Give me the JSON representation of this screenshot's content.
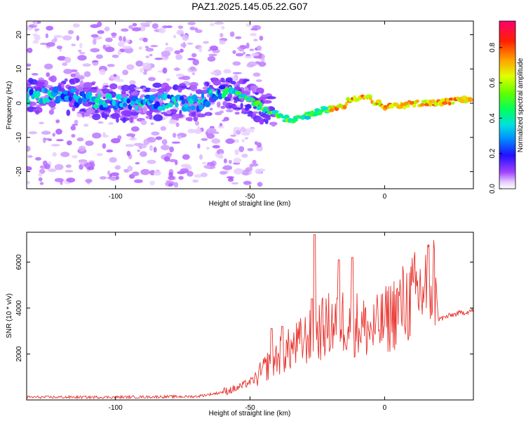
{
  "title": "PAZ1.2025.145.05.22.G07",
  "chart_data": [
    {
      "type": "heatmap",
      "xlabel": "Height of straight line (km)",
      "ylabel": "Frequency (Hz)",
      "xlim": [
        -133,
        33
      ],
      "ylim": [
        -25,
        24
      ],
      "xticks": [
        -100,
        -50,
        0
      ],
      "yticks": [
        -20,
        -10,
        0,
        10,
        20
      ],
      "colorbar": {
        "label": "Normalized spectral amplitude",
        "range": [
          0,
          0.95
        ],
        "ticks": [
          "0.0",
          "0.2",
          "0.4",
          "0.6",
          "0.8"
        ],
        "colormap": [
          "#ffffff",
          "#d9b3ff",
          "#8000ff",
          "#2000ff",
          "#00c0ff",
          "#00ff80",
          "#80ff00",
          "#ffff00",
          "#ff8000",
          "#ff0000",
          "#ff0060"
        ]
      },
      "ridge": [
        {
          "x": -133,
          "f": 2
        },
        {
          "x": -120,
          "f": 2.5
        },
        {
          "x": -110,
          "f": 1
        },
        {
          "x": -100,
          "f": 0
        },
        {
          "x": -90,
          "f": 0
        },
        {
          "x": -80,
          "f": 0.5
        },
        {
          "x": -70,
          "f": 0
        },
        {
          "x": -65,
          "f": 2
        },
        {
          "x": -60,
          "f": 3.5
        },
        {
          "x": -55,
          "f": 3
        },
        {
          "x": -50,
          "f": 1
        },
        {
          "x": -45,
          "f": -1.5
        },
        {
          "x": -40,
          "f": -3.5
        },
        {
          "x": -35,
          "f": -5
        },
        {
          "x": -30,
          "f": -4
        },
        {
          "x": -25,
          "f": -2.5
        },
        {
          "x": -20,
          "f": -1.5
        },
        {
          "x": -15,
          "f": -0.5
        },
        {
          "x": -12,
          "f": 1.5
        },
        {
          "x": -8,
          "f": 2
        },
        {
          "x": -5,
          "f": 1
        },
        {
          "x": 0,
          "f": -1
        },
        {
          "x": 5,
          "f": -1
        },
        {
          "x": 10,
          "f": 0
        },
        {
          "x": 20,
          "f": 0
        },
        {
          "x": 33,
          "f": 1.5
        }
      ]
    },
    {
      "type": "line",
      "xlabel": "Height of straight line (km)",
      "ylabel": "SNR (10 * v/v)",
      "xlim": [
        -133,
        33
      ],
      "ylim": [
        0,
        7300
      ],
      "xticks": [
        -100,
        -50,
        0
      ],
      "yticks": [
        2000,
        4000,
        6000
      ],
      "color": "#e8322d",
      "envelope": [
        {
          "x": -133,
          "y": 120
        },
        {
          "x": -100,
          "y": 120
        },
        {
          "x": -70,
          "y": 150
        },
        {
          "x": -62,
          "y": 300
        },
        {
          "x": -55,
          "y": 500
        },
        {
          "x": -48,
          "y": 900
        },
        {
          "x": -42,
          "y": 1700
        },
        {
          "x": -38,
          "y": 2000
        },
        {
          "x": -35,
          "y": 2200
        },
        {
          "x": -30,
          "y": 2600
        },
        {
          "x": -26,
          "y": 2900
        },
        {
          "x": -20,
          "y": 3300
        },
        {
          "x": -15,
          "y": 3500
        },
        {
          "x": -10,
          "y": 3300
        },
        {
          "x": -5,
          "y": 3000
        },
        {
          "x": 0,
          "y": 3400
        },
        {
          "x": 5,
          "y": 4000
        },
        {
          "x": 10,
          "y": 4400
        },
        {
          "x": 15,
          "y": 4900
        },
        {
          "x": 19,
          "y": 5300
        },
        {
          "x": 20,
          "y": 3500
        },
        {
          "x": 25,
          "y": 3700
        },
        {
          "x": 33,
          "y": 3900
        }
      ],
      "spikes": [
        {
          "x": -26,
          "y": 7200
        },
        {
          "x": -27,
          "y": 4400
        },
        {
          "x": -12,
          "y": 6200
        },
        {
          "x": -17,
          "y": 6100
        },
        {
          "x": -42,
          "y": 3100
        },
        {
          "x": -38,
          "y": 3200
        }
      ]
    }
  ]
}
